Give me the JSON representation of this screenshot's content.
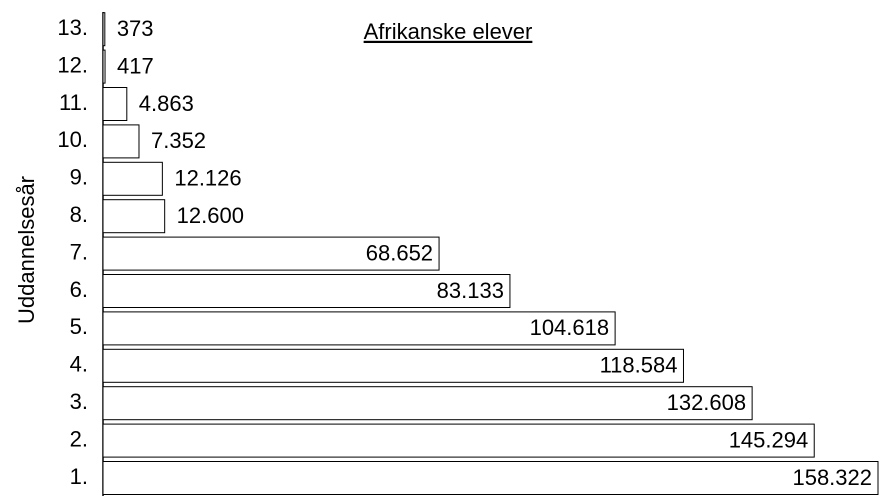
{
  "chart_data": {
    "type": "bar",
    "orientation": "horizontal",
    "title": "Afrikanske elever",
    "y_label": "Uddannelsesår",
    "categories": [
      "1.",
      "2.",
      "3.",
      "4.",
      "5.",
      "6.",
      "7.",
      "8.",
      "9.",
      "10.",
      "11.",
      "12.",
      "13."
    ],
    "values": [
      158322,
      145294,
      132608,
      118584,
      104618,
      83133,
      68652,
      12600,
      12126,
      7352,
      4863,
      417,
      373
    ],
    "value_labels": [
      "158.322",
      "145.294",
      "132.608",
      "118.584",
      "104.618",
      "83.133",
      "68.652",
      "12.600",
      "12.126",
      "7.352",
      "4.863",
      "417",
      "373"
    ],
    "color": "#ffffff",
    "edge_color": "#000000"
  }
}
